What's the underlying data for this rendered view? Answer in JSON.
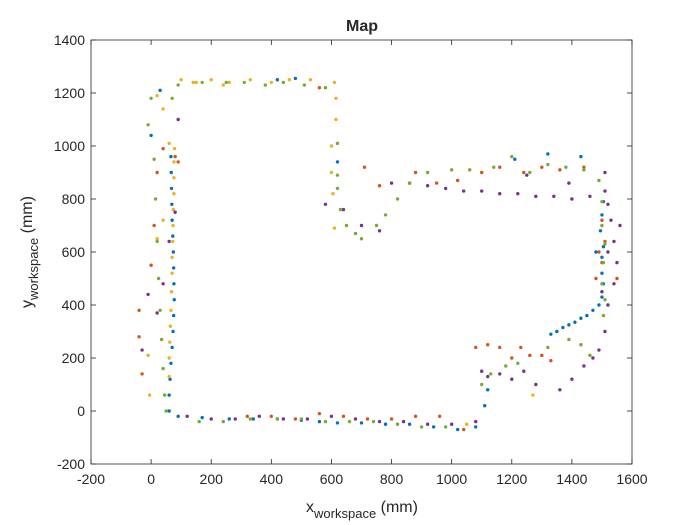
{
  "chart_data": {
    "type": "scatter",
    "title": "Map",
    "xlabel": {
      "main": "x",
      "sub": "workspace",
      "unit": " (mm)"
    },
    "ylabel": {
      "main": "y",
      "sub": "workspace",
      "unit": " (mm)"
    },
    "xlim": [
      -200,
      1600
    ],
    "ylim": [
      -200,
      1400
    ],
    "xticks": [
      -200,
      0,
      200,
      400,
      600,
      800,
      1000,
      1200,
      1400,
      1600
    ],
    "yticks": [
      -200,
      0,
      200,
      400,
      600,
      800,
      1000,
      1200,
      1400
    ],
    "grid": false,
    "legend": "none",
    "series": [
      {
        "color": "#0072BD",
        "points": [
          [
            60,
            0
          ],
          [
            60,
            60
          ],
          [
            63,
            120
          ],
          [
            66,
            180
          ],
          [
            70,
            240
          ],
          [
            73,
            300
          ],
          [
            75,
            360
          ],
          [
            77,
            420
          ],
          [
            76,
            480
          ],
          [
            75,
            540
          ],
          [
            74,
            600
          ],
          [
            72,
            660
          ],
          [
            70,
            720
          ],
          [
            69,
            780
          ],
          [
            68,
            840
          ],
          [
            67,
            900
          ],
          [
            66,
            960
          ],
          [
            0,
            1040
          ],
          [
            30,
            1210
          ],
          [
            420,
            1250
          ],
          [
            480,
            1255
          ],
          [
            90,
            -20
          ],
          [
            170,
            -25
          ],
          [
            260,
            -30
          ],
          [
            340,
            -30
          ],
          [
            420,
            -30
          ],
          [
            500,
            -35
          ],
          [
            560,
            -40
          ],
          [
            620,
            -45
          ],
          [
            700,
            -45
          ],
          [
            780,
            -50
          ],
          [
            860,
            -50
          ],
          [
            940,
            -60
          ],
          [
            1020,
            -70
          ],
          [
            1080,
            -60
          ],
          [
            1110,
            20
          ],
          [
            1120,
            80
          ],
          [
            1330,
            290
          ],
          [
            1350,
            300
          ],
          [
            1370,
            315
          ],
          [
            1390,
            325
          ],
          [
            1410,
            335
          ],
          [
            1430,
            350
          ],
          [
            1450,
            360
          ],
          [
            1470,
            380
          ],
          [
            1490,
            400
          ],
          [
            1500,
            430
          ],
          [
            1505,
            480
          ],
          [
            1500,
            520
          ],
          [
            1500,
            580
          ],
          [
            1505,
            620
          ],
          [
            1495,
            680
          ],
          [
            1500,
            740
          ],
          [
            1505,
            790
          ],
          [
            1320,
            970
          ],
          [
            1430,
            960
          ],
          [
            1210,
            950
          ],
          [
            620,
            940
          ],
          [
            1480,
            600
          ]
        ]
      },
      {
        "color": "#D95319",
        "points": [
          [
            -40,
            380
          ],
          [
            -40,
            280
          ],
          [
            -30,
            140
          ],
          [
            0,
            550
          ],
          [
            10,
            700
          ],
          [
            20,
            900
          ],
          [
            40,
            990
          ],
          [
            80,
            960
          ],
          [
            90,
            940
          ],
          [
            560,
            1220
          ],
          [
            320,
            -20
          ],
          [
            400,
            -20
          ],
          [
            480,
            -30
          ],
          [
            560,
            -10
          ],
          [
            640,
            -20
          ],
          [
            720,
            -30
          ],
          [
            800,
            -30
          ],
          [
            880,
            -20
          ],
          [
            960,
            -20
          ],
          [
            1040,
            -70
          ],
          [
            1080,
            240
          ],
          [
            1120,
            250
          ],
          [
            1160,
            240
          ],
          [
            1200,
            200
          ],
          [
            1230,
            240
          ],
          [
            1260,
            210
          ],
          [
            1300,
            210
          ],
          [
            1330,
            190
          ],
          [
            1480,
            500
          ],
          [
            1500,
            560
          ],
          [
            1510,
            640
          ],
          [
            1500,
            720
          ],
          [
            1550,
            500
          ],
          [
            710,
            920
          ],
          [
            760,
            850
          ],
          [
            880,
            900
          ],
          [
            950,
            860
          ],
          [
            1020,
            870
          ],
          [
            1100,
            900
          ],
          [
            1160,
            920
          ],
          [
            1240,
            900
          ],
          [
            1300,
            920
          ],
          [
            1360,
            910
          ],
          [
            1440,
            920
          ],
          [
            1490,
            600
          ]
        ]
      },
      {
        "color": "#EDB120",
        "points": [
          [
            60,
            130
          ],
          [
            60,
            200
          ],
          [
            62,
            260
          ],
          [
            64,
            320
          ],
          [
            66,
            380
          ],
          [
            68,
            450
          ],
          [
            70,
            520
          ],
          [
            70,
            580
          ],
          [
            72,
            640
          ],
          [
            73,
            700
          ],
          [
            74,
            760
          ],
          [
            76,
            820
          ],
          [
            76,
            880
          ],
          [
            76,
            940
          ],
          [
            78,
            990
          ],
          [
            60,
            1010
          ],
          [
            40,
            1140
          ],
          [
            20,
            1190
          ],
          [
            -10,
            210
          ],
          [
            -5,
            60
          ],
          [
            100,
            1250
          ],
          [
            140,
            1240
          ],
          [
            200,
            1250
          ],
          [
            260,
            1240
          ],
          [
            330,
            1250
          ],
          [
            400,
            1240
          ],
          [
            460,
            1250
          ],
          [
            530,
            1250
          ],
          [
            610,
            1240
          ],
          [
            615,
            1180
          ],
          [
            615,
            1100
          ],
          [
            600,
            1000
          ],
          [
            600,
            900
          ],
          [
            605,
            820
          ],
          [
            610,
            690
          ],
          [
            20,
            650
          ],
          [
            40,
            720
          ],
          [
            150,
            1240
          ],
          [
            240,
            1230
          ],
          [
            1050,
            -50
          ],
          [
            1270,
            60
          ]
        ]
      },
      {
        "color": "#7E2F8E",
        "points": [
          [
            -30,
            230
          ],
          [
            -10,
            440
          ],
          [
            20,
            370
          ],
          [
            40,
            480
          ],
          [
            60,
            640
          ],
          [
            80,
            750
          ],
          [
            90,
            1100
          ],
          [
            120,
            -20
          ],
          [
            200,
            -30
          ],
          [
            280,
            -30
          ],
          [
            360,
            -20
          ],
          [
            440,
            -30
          ],
          [
            520,
            -30
          ],
          [
            600,
            -20
          ],
          [
            680,
            -30
          ],
          [
            760,
            -40
          ],
          [
            840,
            -40
          ],
          [
            920,
            -50
          ],
          [
            1000,
            -50
          ],
          [
            1080,
            -40
          ],
          [
            1100,
            150
          ],
          [
            1120,
            130
          ],
          [
            1160,
            140
          ],
          [
            1200,
            120
          ],
          [
            1240,
            150
          ],
          [
            1280,
            100
          ],
          [
            1400,
            120
          ],
          [
            1440,
            170
          ],
          [
            1470,
            200
          ],
          [
            1490,
            230
          ],
          [
            1510,
            300
          ],
          [
            1520,
            400
          ],
          [
            1540,
            480
          ],
          [
            1550,
            560
          ],
          [
            1540,
            640
          ],
          [
            1530,
            720
          ],
          [
            1520,
            780
          ],
          [
            580,
            780
          ],
          [
            640,
            760
          ],
          [
            700,
            700
          ],
          [
            760,
            680
          ],
          [
            800,
            860
          ],
          [
            860,
            860
          ],
          [
            920,
            850
          ],
          [
            980,
            840
          ],
          [
            1040,
            830
          ],
          [
            1100,
            830
          ],
          [
            1160,
            820
          ],
          [
            1220,
            820
          ],
          [
            1280,
            810
          ],
          [
            1340,
            810
          ],
          [
            1400,
            800
          ],
          [
            1460,
            810
          ],
          [
            1510,
            830
          ],
          [
            1250,
            890
          ],
          [
            1390,
            860
          ],
          [
            1510,
            900
          ],
          [
            1560,
            700
          ],
          [
            1520,
            600
          ],
          [
            1500,
            450
          ],
          [
            1360,
            80
          ]
        ]
      },
      {
        "color": "#77AC30",
        "points": [
          [
            -10,
            1080
          ],
          [
            0,
            1180
          ],
          [
            10,
            950
          ],
          [
            15,
            800
          ],
          [
            20,
            640
          ],
          [
            25,
            500
          ],
          [
            30,
            380
          ],
          [
            35,
            270
          ],
          [
            40,
            160
          ],
          [
            45,
            60
          ],
          [
            50,
            0
          ],
          [
            70,
            1180
          ],
          [
            90,
            1230
          ],
          [
            170,
            1240
          ],
          [
            250,
            1240
          ],
          [
            310,
            1240
          ],
          [
            380,
            1230
          ],
          [
            440,
            1240
          ],
          [
            510,
            1230
          ],
          [
            580,
            1220
          ],
          [
            620,
            1010
          ],
          [
            620,
            890
          ],
          [
            620,
            840
          ],
          [
            630,
            760
          ],
          [
            650,
            700
          ],
          [
            680,
            670
          ],
          [
            700,
            650
          ],
          [
            750,
            700
          ],
          [
            780,
            740
          ],
          [
            820,
            800
          ],
          [
            860,
            860
          ],
          [
            920,
            900
          ],
          [
            1000,
            910
          ],
          [
            1060,
            910
          ],
          [
            1140,
            920
          ],
          [
            1200,
            960
          ],
          [
            1260,
            900
          ],
          [
            1320,
            930
          ],
          [
            1380,
            920
          ],
          [
            1440,
            910
          ],
          [
            1490,
            870
          ],
          [
            1500,
            790
          ],
          [
            1500,
            700
          ],
          [
            1510,
            630
          ],
          [
            1505,
            560
          ],
          [
            1500,
            480
          ],
          [
            1510,
            420
          ],
          [
            1505,
            360
          ],
          [
            1460,
            210
          ],
          [
            1430,
            250
          ],
          [
            1390,
            270
          ],
          [
            1320,
            240
          ],
          [
            1220,
            180
          ],
          [
            1180,
            170
          ],
          [
            1130,
            140
          ],
          [
            1100,
            100
          ],
          [
            160,
            -40
          ],
          [
            240,
            -40
          ],
          [
            330,
            -30
          ],
          [
            420,
            -30
          ],
          [
            500,
            -30
          ],
          [
            580,
            -40
          ],
          [
            660,
            -40
          ],
          [
            740,
            -40
          ],
          [
            820,
            -50
          ],
          [
            900,
            -60
          ],
          [
            980,
            -60
          ]
        ]
      }
    ]
  }
}
